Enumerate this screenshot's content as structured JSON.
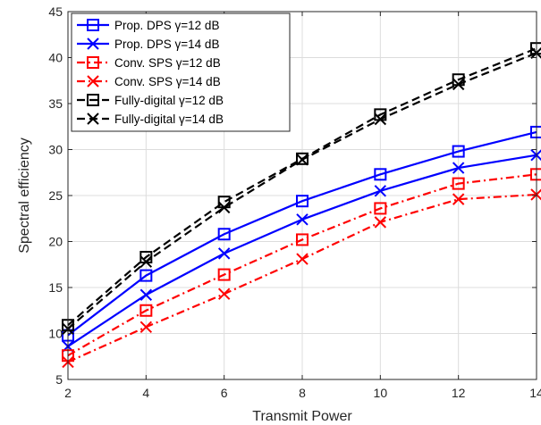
{
  "chart_data": {
    "type": "line",
    "xlabel": "Transmit Power",
    "ylabel": "Spectral efficiency",
    "xlim": [
      2,
      14
    ],
    "ylim": [
      5,
      45
    ],
    "x": [
      2,
      4,
      6,
      8,
      10,
      12,
      14
    ],
    "xticks": [
      "2",
      "4",
      "6",
      "8",
      "10",
      "12",
      "14"
    ],
    "yticks": [
      "5",
      "10",
      "15",
      "20",
      "25",
      "30",
      "35",
      "40",
      "45"
    ],
    "grid": true,
    "legend_position": "top-left",
    "series": [
      {
        "name": "Prop. DPS",
        "gamma": "γ=12 dB",
        "color": "#0000FF",
        "dash": "solid",
        "marker": "square",
        "values": [
          9.8,
          16.3,
          20.8,
          24.4,
          27.3,
          29.8,
          31.9
        ]
      },
      {
        "name": "Prop. DPS",
        "gamma": "γ=14 dB",
        "color": "#0000FF",
        "dash": "solid",
        "marker": "x",
        "values": [
          8.6,
          14.2,
          18.7,
          22.4,
          25.5,
          28.0,
          29.4
        ]
      },
      {
        "name": "Conv. SPS",
        "gamma": "γ=12 dB",
        "color": "#FF0000",
        "dash": "dashdot",
        "marker": "square",
        "values": [
          7.6,
          12.5,
          16.4,
          20.2,
          23.6,
          26.3,
          27.3
        ]
      },
      {
        "name": "Conv. SPS",
        "gamma": "γ=14 dB",
        "color": "#FF0000",
        "dash": "dashdot",
        "marker": "x",
        "values": [
          6.9,
          10.7,
          14.3,
          18.1,
          22.1,
          24.6,
          25.1
        ]
      },
      {
        "name": "Fully-digital ",
        "gamma": "γ=12 dB",
        "color": "#000000",
        "dash": "dashed",
        "marker": "square",
        "values": [
          10.9,
          18.3,
          24.3,
          29.0,
          33.8,
          37.6,
          41.0
        ]
      },
      {
        "name": "Fully-digital ",
        "gamma": "γ=14 dB",
        "color": "#000000",
        "dash": "dashed",
        "marker": "x",
        "values": [
          10.5,
          17.8,
          23.7,
          28.9,
          33.3,
          37.1,
          40.5
        ]
      }
    ]
  }
}
